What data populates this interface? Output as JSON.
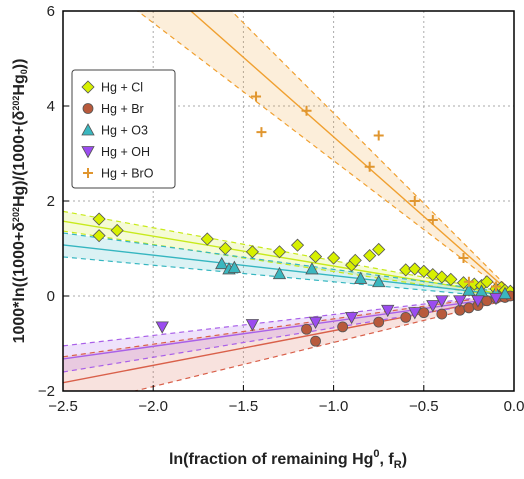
{
  "chart_data": {
    "type": "scatter",
    "xlabel": "ln(fraction of remaining Hg⁰, fᵣ)",
    "xlabel_main": "ln(fraction of remaining Hg",
    "xlabel_sup": "0",
    "xlabel_tail": ", f",
    "xlabel_sub": "R",
    "xlabel_end": ")",
    "ylabel": "1000*ln((1000+δ²⁰²Hg)/(1000+(δ²⁰²Hg₀))",
    "ylabel_parts": [
      "1000*ln((1000+δ",
      "202",
      "Hg)/(1000+(δ",
      "202",
      "Hg",
      "0",
      "))"
    ],
    "xlim": [
      -2.5,
      0.0
    ],
    "ylim": [
      -2,
      6
    ],
    "x_ticks": [
      -2.5,
      -2.0,
      -1.5,
      -1.0,
      -0.5,
      0.0
    ],
    "x_tick_labels": [
      "−2.5",
      "−2.0",
      "−1.5",
      "−1.0",
      "−0.5",
      "0.0"
    ],
    "y_ticks": [
      -2,
      0,
      2,
      4,
      6
    ],
    "y_tick_labels": [
      "−2",
      "0",
      "2",
      "4",
      "6"
    ],
    "grid": true,
    "legend_position": "top-left",
    "series": [
      {
        "name": "Hg + Cl",
        "marker": "diamond",
        "color": "#d7f000",
        "line_color": "#c8ea1a",
        "slope": -0.63,
        "band": 0.07,
        "points": [
          [
            -2.3,
            1.62
          ],
          [
            -2.3,
            1.27
          ],
          [
            -2.2,
            1.38
          ],
          [
            -1.7,
            1.2
          ],
          [
            -1.6,
            1.0
          ],
          [
            -1.45,
            0.93
          ],
          [
            -1.3,
            0.93
          ],
          [
            -1.2,
            1.07
          ],
          [
            -1.1,
            0.83
          ],
          [
            -1.0,
            0.8
          ],
          [
            -0.9,
            0.65
          ],
          [
            -0.88,
            0.75
          ],
          [
            -0.8,
            0.85
          ],
          [
            -0.75,
            0.98
          ],
          [
            -0.6,
            0.55
          ],
          [
            -0.55,
            0.57
          ],
          [
            -0.5,
            0.52
          ],
          [
            -0.45,
            0.45
          ],
          [
            -0.4,
            0.4
          ],
          [
            -0.35,
            0.35
          ],
          [
            -0.28,
            0.28
          ],
          [
            -0.22,
            0.25
          ],
          [
            -0.18,
            0.22
          ],
          [
            -0.15,
            0.3
          ],
          [
            -0.1,
            0.15
          ],
          [
            -0.07,
            0.18
          ],
          [
            -0.05,
            0.12
          ],
          [
            -0.02,
            0.1
          ]
        ]
      },
      {
        "name": "Hg + Br",
        "marker": "circle",
        "color": "#b85a3c",
        "line_color": "#d9604a",
        "slope": 0.73,
        "band": 0.22,
        "points": [
          [
            -1.15,
            -0.7
          ],
          [
            -1.1,
            -0.95
          ],
          [
            -0.95,
            -0.65
          ],
          [
            -0.75,
            -0.55
          ],
          [
            -0.6,
            -0.45
          ],
          [
            -0.5,
            -0.35
          ],
          [
            -0.4,
            -0.38
          ],
          [
            -0.3,
            -0.3
          ],
          [
            -0.25,
            -0.25
          ],
          [
            -0.2,
            -0.2
          ],
          [
            -0.15,
            -0.1
          ],
          [
            -0.1,
            -0.05
          ],
          [
            -0.05,
            -0.03
          ],
          [
            -0.02,
            0.0
          ]
        ]
      },
      {
        "name": "Hg + O3",
        "marker": "triangle",
        "color": "#3ab7bf",
        "line_color": "#35b6c0",
        "slope": -0.43,
        "band": 0.09,
        "points": [
          [
            -1.62,
            0.68
          ],
          [
            -1.58,
            0.57
          ],
          [
            -1.55,
            0.6
          ],
          [
            -1.3,
            0.47
          ],
          [
            -1.12,
            0.57
          ],
          [
            -0.85,
            0.37
          ],
          [
            -0.75,
            0.3
          ],
          [
            -0.25,
            0.12
          ],
          [
            -0.18,
            0.1
          ],
          [
            -0.1,
            0.07
          ],
          [
            -0.05,
            0.05
          ]
        ]
      },
      {
        "name": "Hg + OH",
        "marker": "triangle-down",
        "color": "#9b4cf0",
        "line_color": "#a960e8",
        "slope": 0.53,
        "band": 0.1,
        "points": [
          [
            -1.95,
            -0.65
          ],
          [
            -1.45,
            -0.6
          ],
          [
            -1.1,
            -0.55
          ],
          [
            -0.9,
            -0.45
          ],
          [
            -0.7,
            -0.3
          ],
          [
            -0.55,
            -0.35
          ],
          [
            -0.45,
            -0.2
          ],
          [
            -0.4,
            -0.1
          ],
          [
            -0.3,
            -0.1
          ],
          [
            -0.2,
            -0.1
          ],
          [
            -0.1,
            -0.05
          ]
        ]
      },
      {
        "name": "Hg + BrO",
        "marker": "plus",
        "color": "#e0962f",
        "line_color": "#f0a030",
        "slope": -3.35,
        "band": 0.5,
        "points": [
          [
            -1.43,
            4.2
          ],
          [
            -1.4,
            3.45
          ],
          [
            -1.15,
            3.9
          ],
          [
            -0.8,
            2.72
          ],
          [
            -0.75,
            3.38
          ],
          [
            -0.55,
            2.0
          ],
          [
            -0.45,
            1.6
          ],
          [
            -0.28,
            0.8
          ],
          [
            -0.25,
            0.3
          ],
          [
            -0.1,
            0.2
          ]
        ]
      }
    ]
  }
}
